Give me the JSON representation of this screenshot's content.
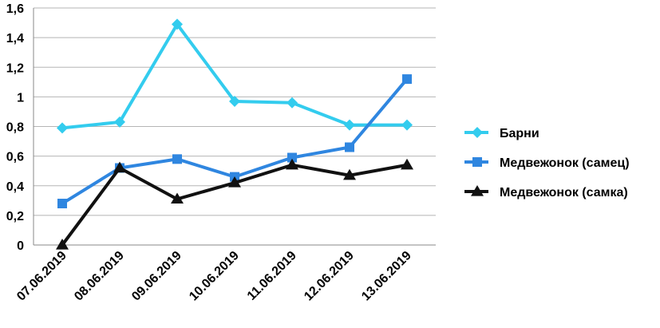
{
  "chart_data": {
    "type": "line",
    "title": "",
    "xlabel": "",
    "ylabel": "",
    "categories": [
      "07.06.2019",
      "08.06.2019",
      "09.06.2019",
      "10.06.2019",
      "11.06.2019",
      "12.06.2019",
      "13.06.2019"
    ],
    "ylim": [
      0,
      1.6
    ],
    "yticks": [
      "0",
      "0,2",
      "0,4",
      "0,6",
      "0,8",
      "1",
      "1,2",
      "1,4",
      "1,6"
    ],
    "grid": true,
    "legend_position": "right",
    "series": [
      {
        "name": "Барни",
        "color": "#33ccee",
        "marker": "diamond",
        "values": [
          0.79,
          0.83,
          1.49,
          0.97,
          0.96,
          0.81,
          0.81
        ]
      },
      {
        "name": "Медвежонок (самец)",
        "color": "#2f86e0",
        "marker": "square",
        "values": [
          0.28,
          0.52,
          0.58,
          0.46,
          0.59,
          0.66,
          1.12
        ]
      },
      {
        "name": "Медвежонок (самка)",
        "color": "#111111",
        "marker": "triangle",
        "values": [
          0.0,
          0.52,
          0.31,
          0.42,
          0.54,
          0.47,
          0.54
        ]
      }
    ]
  }
}
